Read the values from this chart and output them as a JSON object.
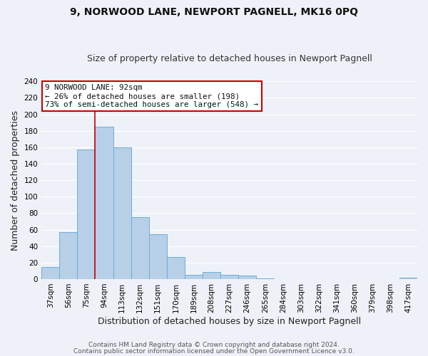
{
  "title": "9, NORWOOD LANE, NEWPORT PAGNELL, MK16 0PQ",
  "subtitle": "Size of property relative to detached houses in Newport Pagnell",
  "xlabel": "Distribution of detached houses by size in Newport Pagnell",
  "ylabel": "Number of detached properties",
  "bin_labels": [
    "37sqm",
    "56sqm",
    "75sqm",
    "94sqm",
    "113sqm",
    "132sqm",
    "151sqm",
    "170sqm",
    "189sqm",
    "208sqm",
    "227sqm",
    "246sqm",
    "265sqm",
    "284sqm",
    "303sqm",
    "322sqm",
    "341sqm",
    "360sqm",
    "379sqm",
    "398sqm",
    "417sqm"
  ],
  "bar_heights": [
    15,
    57,
    157,
    185,
    160,
    75,
    54,
    27,
    5,
    9,
    5,
    4,
    1,
    0,
    0,
    0,
    0,
    0,
    0,
    0,
    2
  ],
  "bar_color": "#b8cfe8",
  "bar_edge_color": "#6baed6",
  "vline_color": "#cc0000",
  "annotation_title": "9 NORWOOD LANE: 92sqm",
  "annotation_line1": "← 26% of detached houses are smaller (198)",
  "annotation_line2": "73% of semi-detached houses are larger (548) →",
  "annotation_box_color": "#cc0000",
  "ylim": [
    0,
    240
  ],
  "yticks": [
    0,
    20,
    40,
    60,
    80,
    100,
    120,
    140,
    160,
    180,
    200,
    220,
    240
  ],
  "footer1": "Contains HM Land Registry data © Crown copyright and database right 2024.",
  "footer2": "Contains public sector information licensed under the Open Government Licence v3.0.",
  "background_color": "#eef2f8",
  "grid_color": "#ffffff",
  "title_fontsize": 10,
  "subtitle_fontsize": 9,
  "xlabel_fontsize": 9,
  "ylabel_fontsize": 9,
  "tick_fontsize": 7.5,
  "footer_fontsize": 6.5
}
